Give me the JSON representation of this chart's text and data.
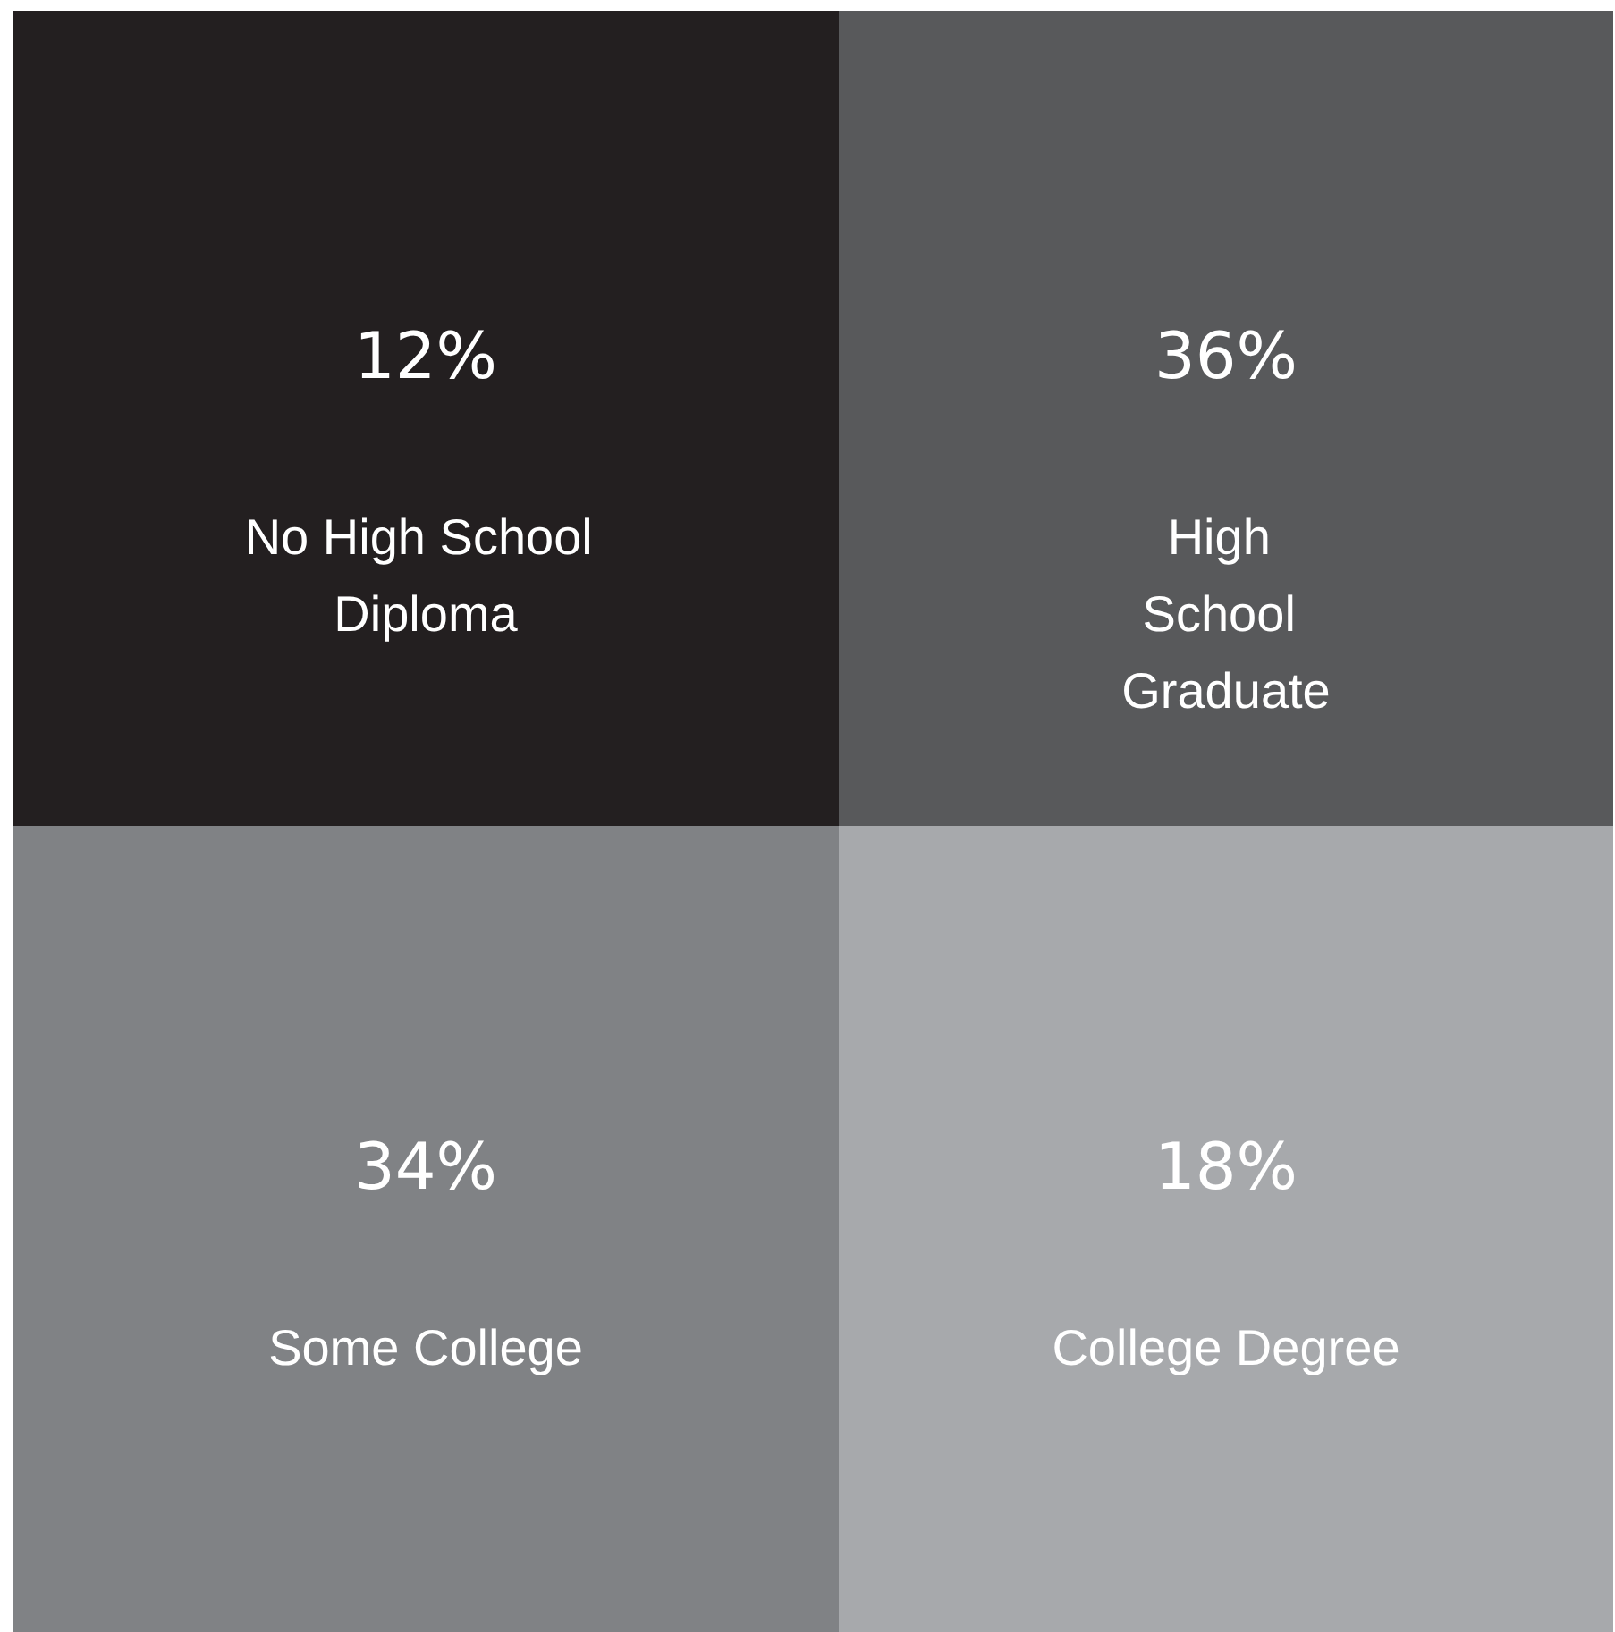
{
  "chart_data": {
    "type": "other",
    "categories": [
      "No High School Diploma",
      "High School Graduate",
      "Some College",
      "College Degree"
    ],
    "values": [
      12,
      36,
      34,
      18
    ],
    "value_labels": [
      "12%",
      "36%",
      "34%",
      "18%"
    ],
    "colors": [
      "#231f20",
      "#58595b",
      "#808285",
      "#a7a9ac"
    ]
  }
}
